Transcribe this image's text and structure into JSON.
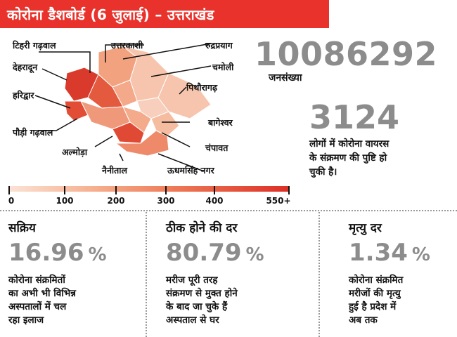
{
  "header": {
    "title": "कोरोना डैशबोर्ड (6 जुलाई) – उत्तराखंड"
  },
  "map": {
    "districts": [
      "टिहरी गढ़वाल",
      "उत्तरकाशी",
      "रुद्रप्रयाग",
      "देहरादून",
      "चमोली",
      "हरिद्वार",
      "पिथौरागढ़",
      "बागेश्वर",
      "पौड़ी गढ़वाल",
      "चंपावत",
      "अल्मोड़ा",
      "नैनीताल",
      "ऊधमसिंह नगर"
    ]
  },
  "legend": {
    "ticks": [
      "0",
      "100",
      "200",
      "300",
      "400",
      "550+"
    ],
    "colors": [
      "#fbe3d6",
      "#dc2f25"
    ]
  },
  "population": {
    "value": "10086292",
    "label": "जनसंख्या"
  },
  "cases": {
    "value": "3124",
    "desc": [
      "लोगों में कोरोना वायरस",
      "के संक्रमण की पुष्टि हो",
      "चुकी है।"
    ]
  },
  "stats": [
    {
      "title": "सक्रिय",
      "value": "16.96",
      "unit": "%",
      "desc": [
        "कोरोना संक्रमितों",
        "का अभी भी विभिन्न",
        "अस्पतालों में चल",
        "रहा इलाज"
      ]
    },
    {
      "title": "ठीक होने की दर",
      "value": "80.79",
      "unit": "%",
      "desc": [
        "मरीज पूरी तरह",
        "संक्रमण से मुक्त होने",
        "के बाद जा चुके हैं",
        "अस्पताल से घर"
      ]
    },
    {
      "title": "मृत्यु दर",
      "value": "1.34",
      "unit": "%",
      "desc": [
        "कोरोना संक्रमित",
        "मरीजों की मृत्यु",
        "हुई है प्रदेश में",
        "अब तक"
      ]
    }
  ]
}
